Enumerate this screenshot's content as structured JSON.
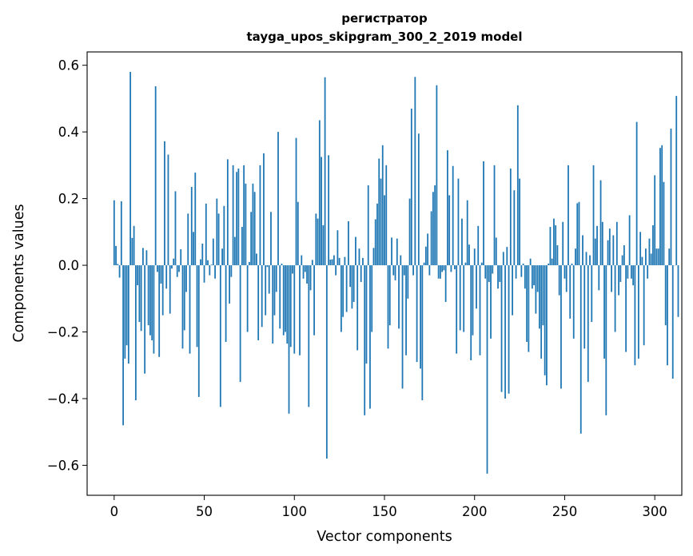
{
  "chart_data": {
    "type": "bar",
    "title": "регистратор",
    "subtitle": "tayga_upos_skipgram_300_2_2019 model",
    "xlabel": "Vector components",
    "ylabel": "Components values",
    "xlim": [
      -15,
      315
    ],
    "ylim": [
      -0.69,
      0.64
    ],
    "xticks": [
      0,
      50,
      100,
      150,
      200,
      250,
      300
    ],
    "yticks": [
      -0.6,
      -0.4,
      -0.2,
      0.0,
      0.2,
      0.4,
      0.6
    ],
    "ytick_labels": [
      "−0.6",
      "−0.4",
      "−0.2",
      "0.0",
      "0.2",
      "0.4",
      "0.6"
    ],
    "grid": false,
    "bar_color": "#1f77b4",
    "values": [
      0.195,
      0.058,
      0.004,
      -0.037,
      0.192,
      -0.48,
      -0.28,
      -0.24,
      -0.295,
      0.58,
      0.082,
      0.118,
      -0.405,
      -0.06,
      -0.17,
      -0.197,
      0.052,
      -0.325,
      0.045,
      -0.18,
      -0.21,
      -0.225,
      -0.265,
      0.537,
      -0.02,
      -0.275,
      -0.055,
      -0.15,
      0.372,
      -0.07,
      0.332,
      -0.145,
      -0.01,
      0.02,
      0.222,
      -0.035,
      -0.02,
      0.048,
      -0.25,
      -0.195,
      -0.08,
      0.155,
      -0.265,
      0.235,
      0.1,
      0.278,
      -0.245,
      -0.395,
      0.018,
      0.065,
      -0.052,
      0.185,
      0.015,
      -0.03,
      0.002,
      0.08,
      -0.04,
      0.2,
      0.155,
      -0.425,
      0.05,
      0.178,
      -0.23,
      0.318,
      -0.115,
      -0.035,
      0.3,
      0.085,
      0.28,
      0.29,
      -0.35,
      0.115,
      0.3,
      0.245,
      -0.2,
      0.01,
      0.16,
      0.245,
      0.22,
      0.035,
      -0.225,
      0.3,
      -0.185,
      0.336,
      -0.15,
      -0.005,
      -0.085,
      0.16,
      -0.235,
      -0.15,
      -0.08,
      0.4,
      -0.19,
      0.005,
      -0.21,
      -0.2,
      -0.235,
      -0.445,
      -0.245,
      -0.025,
      -0.265,
      0.382,
      0.19,
      -0.27,
      0.03,
      -0.04,
      -0.02,
      -0.055,
      -0.425,
      -0.075,
      0.016,
      -0.21,
      0.155,
      0.14,
      0.435,
      0.325,
      0.12,
      0.564,
      -0.58,
      0.33,
      0.017,
      0.018,
      0.03,
      -0.03,
      0.105,
      0.022,
      -0.2,
      -0.155,
      0.025,
      -0.14,
      0.132,
      -0.065,
      -0.13,
      -0.11,
      0.085,
      -0.255,
      0.05,
      -0.05,
      0.022,
      -0.45,
      -0.295,
      0.24,
      -0.43,
      -0.2,
      0.052,
      0.138,
      0.185,
      0.32,
      0.26,
      0.36,
      0.21,
      0.3,
      -0.25,
      -0.18,
      0.083,
      -0.03,
      -0.045,
      0.08,
      -0.19,
      0.03,
      -0.37,
      -0.03,
      -0.27,
      -0.1,
      0.2,
      0.47,
      -0.03,
      0.565,
      -0.29,
      0.395,
      -0.31,
      -0.405,
      0.008,
      0.056,
      0.095,
      -0.03,
      0.162,
      0.22,
      0.24,
      0.54,
      -0.04,
      -0.04,
      -0.02,
      -0.015,
      -0.11,
      0.345,
      0.21,
      -0.02,
      0.298,
      -0.012,
      -0.265,
      0.26,
      -0.195,
      0.14,
      -0.2,
      0.008,
      0.195,
      0.062,
      -0.285,
      -0.21,
      0.05,
      -0.13,
      0.118,
      -0.27,
      0.008,
      0.312,
      -0.04,
      -0.625,
      -0.05,
      -0.22,
      -0.025,
      0.3,
      0.083,
      -0.07,
      -0.05,
      -0.38,
      0.04,
      -0.4,
      0.055,
      -0.385,
      0.29,
      -0.15,
      0.225,
      -0.04,
      0.48,
      0.26,
      -0.035,
      0.005,
      -0.07,
      -0.23,
      -0.26,
      0.02,
      -0.07,
      -0.06,
      -0.145,
      -0.08,
      -0.19,
      -0.28,
      -0.18,
      -0.33,
      -0.36,
      0.005,
      0.115,
      0.02,
      0.14,
      0.12,
      0.06,
      -0.09,
      -0.37,
      0.13,
      -0.04,
      -0.08,
      0.3,
      -0.16,
      0.005,
      -0.22,
      0.05,
      0.186,
      0.19,
      -0.505,
      0.09,
      -0.25,
      0.04,
      -0.35,
      0.03,
      -0.17,
      0.3,
      0.08,
      0.118,
      -0.075,
      0.255,
      0.13,
      -0.28,
      -0.45,
      0.075,
      0.11,
      -0.08,
      0.09,
      -0.2,
      0.13,
      -0.09,
      -0.05,
      0.03,
      0.06,
      -0.26,
      -0.04,
      0.15,
      -0.04,
      -0.06,
      -0.3,
      0.43,
      -0.28,
      0.1,
      0.025,
      -0.24,
      0.05,
      -0.04,
      0.08,
      0.035,
      0.12,
      0.27,
      0.05,
      0.05,
      0.352,
      0.36,
      0.25,
      -0.18,
      -0.3,
      0.05,
      0.41,
      -0.34,
      0.0,
      0.508,
      -0.155
    ]
  }
}
